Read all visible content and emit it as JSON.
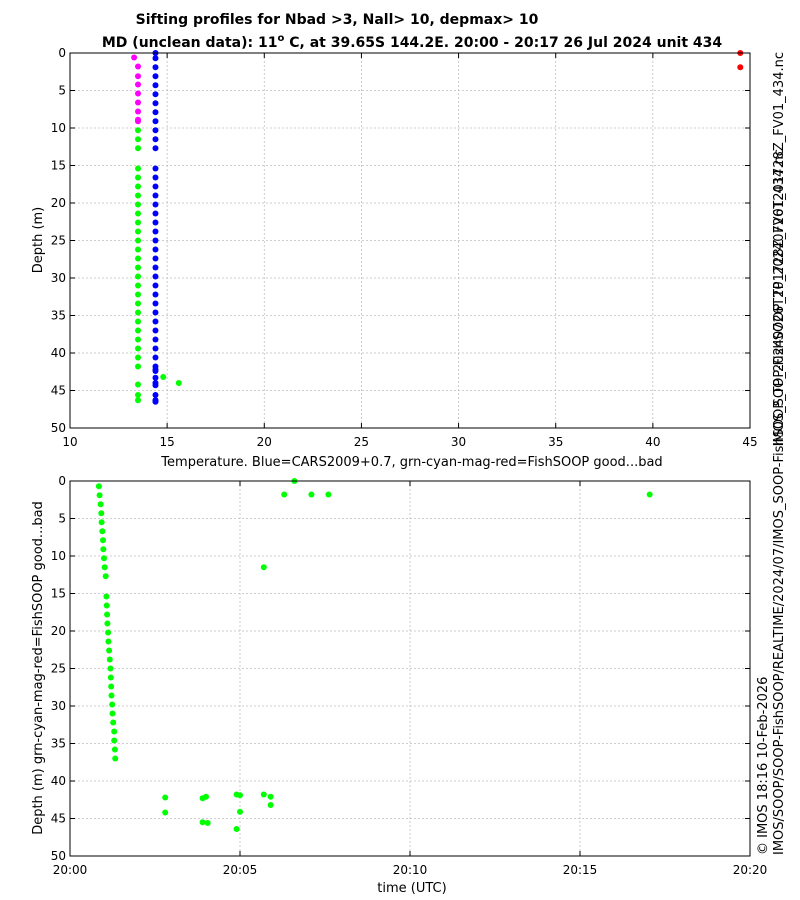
{
  "title_line1": "Sifting profiles for Nbad >3, Nall> 10, depmax> 10",
  "title_line2_pre": "MD (unclean data): 11",
  "title_line2_sup": "o",
  "title_line2_post": " C, at 39.65S 144.2E. 20:00 - 20:17 26 Jul 2024 unit 434",
  "right_label_top": "IMOS_SOOP-FishSOOP_TP_20240726T201728Z_FV01_434.nc",
  "right_label_mid": "IMOS/SOOP/SOOP-FishSOOP/REALTIME/2024/07/IMOS_SOOP-FishSOOP_TP_20240726T201728Z_FV01_434.nc",
  "right_label_bottom": "© IMOS 18:16 10-Feb-2026",
  "colors": {
    "blue": "#0000ff",
    "green": "#00ff00",
    "magenta": "#ff00ff",
    "red": "#ff0000",
    "grid": "#bfbfbf"
  },
  "chart_data": [
    {
      "type": "scatter",
      "title": "Sifting profiles for Nbad >3, Nall> 10, depmax> 10",
      "xlabel": "Temperature. Blue=CARS2009+0.7, grn-cyan-mag-red=FishSOOP good...bad",
      "ylabel": "Depth (m)",
      "xlim": [
        10,
        45
      ],
      "ylim": [
        50,
        0
      ],
      "xticks": [
        10,
        15,
        20,
        25,
        30,
        35,
        40,
        45
      ],
      "yticks": [
        0,
        5,
        10,
        15,
        20,
        25,
        30,
        35,
        40,
        45,
        50
      ],
      "grid": true,
      "series": [
        {
          "name": "CARS2009+0.7",
          "color": "blue",
          "x": [
            14.4,
            14.4,
            14.4,
            14.4,
            14.4,
            14.4,
            14.4,
            14.4,
            14.4,
            14.4,
            14.4,
            14.4,
            14.4,
            14.4,
            14.4,
            14.4,
            14.4,
            14.4,
            14.4,
            14.4,
            14.4,
            14.4,
            14.4,
            14.4,
            14.4,
            14.4,
            14.4,
            14.4,
            14.4,
            14.4,
            14.4,
            14.4,
            14.4,
            14.4,
            14.4,
            14.4,
            14.4,
            14.4,
            14.4,
            14.4,
            14.4,
            14.4,
            14.4,
            14.4
          ],
          "y": [
            0,
            0.7,
            1.9,
            3.1,
            4.3,
            5.5,
            6.7,
            7.9,
            9.1,
            10.3,
            11.5,
            12.7,
            15.4,
            16.6,
            17.8,
            19.0,
            20.2,
            21.4,
            22.6,
            23.8,
            25.0,
            26.2,
            27.4,
            28.6,
            29.8,
            31.0,
            32.2,
            33.4,
            34.6,
            35.8,
            37.0,
            38.2,
            39.4,
            40.6,
            41.8,
            42.2,
            42.4,
            43.3,
            44.0,
            44.3,
            45.6,
            46.3,
            46.5,
            46.4
          ]
        },
        {
          "name": "FishSOOP bad-mid",
          "color": "magenta",
          "x": [
            13.3,
            13.5,
            13.5,
            13.5,
            13.5,
            13.5,
            13.5,
            13.5,
            13.5
          ],
          "y": [
            0.6,
            1.8,
            3.1,
            4.2,
            5.4,
            6.6,
            7.8,
            8.9,
            9.1
          ]
        },
        {
          "name": "FishSOOP good",
          "color": "green",
          "x": [
            13.5,
            13.5,
            13.5,
            13.5,
            13.5,
            13.5,
            13.5,
            13.5,
            13.5,
            13.5,
            13.5,
            13.5,
            13.5,
            13.5,
            13.5,
            13.5,
            13.5,
            13.5,
            13.5,
            13.5,
            13.5,
            13.5,
            13.5,
            13.5,
            13.5,
            13.5,
            14.8,
            15.6,
            13.5,
            13.5,
            13.5
          ],
          "y": [
            10.3,
            11.5,
            12.7,
            15.4,
            16.6,
            17.8,
            19.0,
            20.2,
            21.4,
            22.6,
            23.8,
            25.0,
            26.2,
            27.4,
            28.6,
            29.8,
            31.0,
            32.2,
            33.4,
            34.6,
            35.8,
            37.0,
            38.2,
            39.4,
            40.6,
            41.8,
            43.2,
            44.0,
            44.2,
            45.6,
            46.3
          ]
        },
        {
          "name": "FishSOOP bad",
          "color": "red",
          "x": [
            44.5,
            44.5
          ],
          "y": [
            0,
            1.9
          ]
        }
      ]
    },
    {
      "type": "scatter",
      "xlabel": "time (UTC)",
      "ylabel": "Depth (m) grn-cyan-mag-red=FishSOOP good...bad",
      "xlim": [
        "20:00",
        "20:20"
      ],
      "ylim": [
        50,
        0
      ],
      "xticks": [
        "20:00",
        "20:05",
        "20:10",
        "20:15",
        "20:20"
      ],
      "yticks": [
        0,
        5,
        10,
        15,
        20,
        25,
        30,
        35,
        40,
        45,
        50
      ],
      "grid": true,
      "series": [
        {
          "name": "FishSOOP good",
          "color": "green",
          "x_minutes": [
            0.85,
            0.87,
            0.9,
            0.92,
            0.93,
            0.95,
            0.97,
            0.98,
            1.0,
            1.02,
            1.05,
            1.07,
            1.08,
            1.09,
            1.1,
            1.12,
            1.13,
            1.15,
            1.17,
            1.19,
            1.2,
            1.21,
            1.22,
            1.24,
            1.25,
            1.27,
            1.3,
            1.3,
            1.32,
            1.33,
            2.8,
            2.8,
            3.9,
            4.0,
            3.9,
            4.05,
            4.9,
            5.0,
            4.9,
            5.0,
            5.7,
            5.9,
            5.9,
            6.3,
            6.6,
            7.1,
            7.6,
            5.7,
            17.05
          ],
          "y": [
            0.7,
            1.9,
            3.1,
            4.3,
            5.5,
            6.7,
            7.9,
            9.1,
            10.3,
            11.5,
            12.7,
            15.4,
            16.6,
            17.8,
            19.0,
            20.2,
            21.4,
            22.6,
            23.8,
            25.0,
            26.2,
            27.4,
            28.6,
            29.8,
            31.0,
            32.2,
            33.4,
            34.6,
            35.8,
            37.0,
            42.2,
            44.2,
            42.3,
            42.1,
            45.5,
            45.6,
            41.8,
            41.9,
            46.4,
            44.1,
            41.8,
            42.1,
            43.2,
            1.8,
            0,
            1.8,
            1.8,
            11.5,
            1.8
          ]
        }
      ]
    }
  ]
}
